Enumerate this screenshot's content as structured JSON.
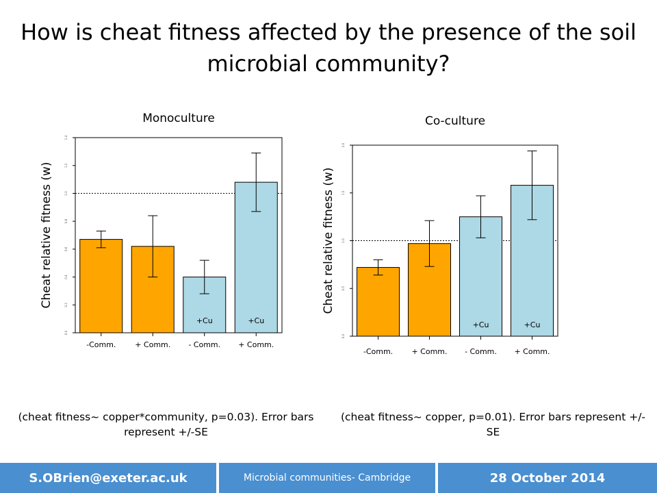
{
  "slide": {
    "title": "How is cheat fitness affected by the presence of the soil microbial community?"
  },
  "chart_data": [
    {
      "type": "bar",
      "title": "Monoculture",
      "ylabel": "Cheat relative fitness (w)",
      "categories": [
        "-Comm.",
        "+ Comm.",
        "- Comm.",
        "+ Comm."
      ],
      "bar_tags": [
        "",
        "",
        "+Cu",
        "+Cu"
      ],
      "values": [
        0.67,
        0.62,
        0.4,
        1.08
      ],
      "error": [
        0.06,
        0.22,
        0.12,
        0.21
      ],
      "colors": [
        "#FFA500",
        "#FFA500",
        "#ADD8E6",
        "#ADD8E6"
      ],
      "ylim": [
        0,
        1.4
      ],
      "yticks": [
        0,
        0.2,
        0.4,
        0.6,
        0.8,
        1.0,
        1.2,
        1.4
      ],
      "reference_line": 1.0
    },
    {
      "type": "bar",
      "title": "Co-culture",
      "ylabel": "Cheat relative fitness (w)",
      "categories": [
        "-Comm.",
        "+ Comm.",
        "- Comm.",
        "+ Comm."
      ],
      "bar_tags": [
        "",
        "",
        "+Cu",
        "+Cu"
      ],
      "values": [
        0.72,
        0.97,
        1.25,
        1.58
      ],
      "error": [
        0.08,
        0.24,
        0.22,
        0.36
      ],
      "colors": [
        "#FFA500",
        "#FFA500",
        "#ADD8E6",
        "#ADD8E6"
      ],
      "ylim": [
        0,
        2.0
      ],
      "yticks": [
        0,
        0.5,
        1.0,
        1.5,
        2.0
      ],
      "reference_line": 1.0
    }
  ],
  "captions": {
    "left": "(cheat fitness~ copper*community, p=0.03). Error bars represent +/-SE",
    "right": "(cheat fitness~ copper, p=0.01). Error bars represent +/- SE"
  },
  "footer": {
    "email": "S.OBrien@exeter.ac.uk",
    "event": "Microbial communities- Cambridge",
    "date": "28 October 2014"
  }
}
